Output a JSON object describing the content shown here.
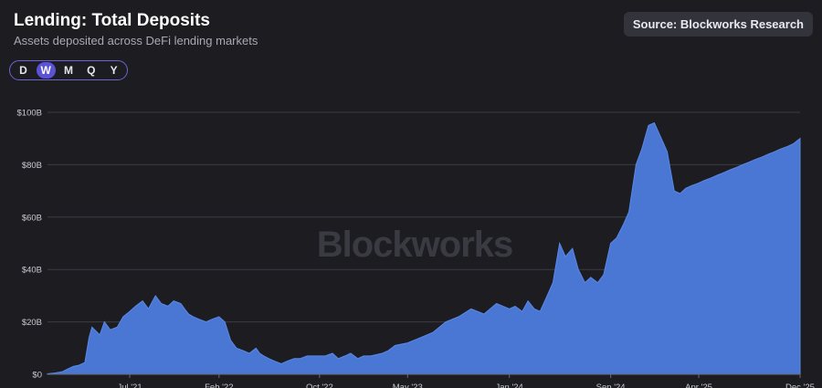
{
  "header": {
    "title": "Lending: Total Deposits",
    "subtitle": "Assets deposited across DeFi lending markets",
    "source": "Source: Blockworks Research"
  },
  "timeframes": [
    {
      "label": "D",
      "active": false
    },
    {
      "label": "W",
      "active": true
    },
    {
      "label": "M",
      "active": false
    },
    {
      "label": "Q",
      "active": false
    },
    {
      "label": "Y",
      "active": false
    }
  ],
  "watermark": "Blockworks",
  "colors": {
    "background": "#1c1c21",
    "area_fill": "#4a77d4",
    "area_line": "#5a88e6",
    "grid": "#3b3b44",
    "accent": "#5b53d6"
  },
  "chart_data": {
    "type": "area",
    "title": "Lending: Total Deposits",
    "subtitle": "Assets deposited across DeFi lending markets",
    "xlabel": "",
    "ylabel": "",
    "ylim": [
      0,
      100
    ],
    "y_unit": "B USD",
    "y_ticks": [
      "$0",
      "$20B",
      "$40B",
      "$60B",
      "$80B",
      "$100B"
    ],
    "y_tick_values": [
      0,
      20,
      40,
      60,
      80,
      100
    ],
    "x_ticks": [
      "Jul '21",
      "Feb '22",
      "Oct '22",
      "May '23",
      "Jan '24",
      "Sep '24",
      "Apr '25",
      "Dec '25"
    ],
    "x_tick_dates": [
      "2021-07-01",
      "2022-02-01",
      "2022-10-01",
      "2023-05-01",
      "2024-01-01",
      "2024-09-01",
      "2025-04-01",
      "2025-12-01"
    ],
    "grid": true,
    "legend": "none",
    "series": [
      {
        "x": [
          "2020-12-15",
          "2021-01-01",
          "2021-01-20",
          "2021-02-01",
          "2021-02-15",
          "2021-03-01",
          "2021-03-15",
          "2021-03-25",
          "2021-04-01",
          "2021-04-20",
          "2021-05-01",
          "2021-05-15",
          "2021-06-01",
          "2021-06-15",
          "2021-07-01",
          "2021-07-15",
          "2021-08-01",
          "2021-08-15",
          "2021-09-01",
          "2021-09-15",
          "2021-10-01",
          "2021-10-15",
          "2021-11-01",
          "2021-11-10",
          "2021-11-20",
          "2021-12-01",
          "2021-12-15",
          "2022-01-01",
          "2022-01-15",
          "2022-02-01",
          "2022-02-15",
          "2022-03-01",
          "2022-03-15",
          "2022-04-01",
          "2022-04-15",
          "2022-05-01",
          "2022-05-10",
          "2022-05-20",
          "2022-06-01",
          "2022-06-15",
          "2022-07-01",
          "2022-07-15",
          "2022-08-01",
          "2022-08-15",
          "2022-09-01",
          "2022-09-15",
          "2022-10-01",
          "2022-10-15",
          "2022-11-01",
          "2022-11-15",
          "2022-12-01",
          "2022-12-15",
          "2023-01-01",
          "2023-01-15",
          "2023-02-01",
          "2023-03-01",
          "2023-03-15",
          "2023-04-01",
          "2023-05-01",
          "2023-06-01",
          "2023-07-01",
          "2023-08-01",
          "2023-09-01",
          "2023-10-01",
          "2023-11-01",
          "2023-12-01",
          "2024-01-01",
          "2024-01-15",
          "2024-02-01",
          "2024-02-15",
          "2024-03-01",
          "2024-03-15",
          "2024-04-01",
          "2024-04-15",
          "2024-05-01",
          "2024-05-15",
          "2024-06-01",
          "2024-06-15",
          "2024-07-01",
          "2024-07-15",
          "2024-08-01",
          "2024-08-15",
          "2024-09-01",
          "2024-09-15",
          "2024-10-01",
          "2024-10-15",
          "2024-11-01",
          "2024-11-15",
          "2024-12-01",
          "2024-12-15",
          "2025-01-01",
          "2025-01-15",
          "2025-02-01",
          "2025-02-15",
          "2025-03-01",
          "2025-03-15",
          "2025-04-01",
          "2025-04-15",
          "2025-05-01",
          "2025-05-15",
          "2025-06-01",
          "2025-06-15",
          "2025-07-01",
          "2025-07-15",
          "2025-08-01",
          "2025-08-15",
          "2025-09-01",
          "2025-09-15",
          "2025-10-01",
          "2025-10-15",
          "2025-11-01",
          "2025-11-15",
          "2025-12-01"
        ],
        "values": [
          0.2,
          0.5,
          1.0,
          2.0,
          3.0,
          3.5,
          4.5,
          14,
          18,
          15,
          20,
          17,
          18,
          22,
          24,
          26,
          28,
          25,
          30,
          27,
          26,
          28,
          27,
          25,
          23,
          22,
          21,
          20,
          21,
          22,
          20,
          13,
          10,
          9,
          8,
          10,
          8,
          7,
          6,
          5,
          4,
          5,
          6,
          6,
          7,
          7,
          7,
          7,
          8,
          6,
          7,
          8,
          6,
          7,
          7,
          8,
          9,
          11,
          12,
          14,
          16,
          20,
          22,
          25,
          23,
          27,
          25,
          26,
          24,
          28,
          25,
          24,
          30,
          35,
          50,
          45,
          48,
          40,
          35,
          37,
          35,
          38,
          50,
          52,
          57,
          62,
          80,
          86,
          95,
          96,
          90,
          85,
          70,
          69,
          71,
          72,
          73,
          74,
          75,
          76,
          77,
          78,
          79,
          80,
          81,
          82,
          83,
          84,
          85,
          86,
          87,
          88,
          90
        ],
        "_note": ""
      }
    ]
  }
}
